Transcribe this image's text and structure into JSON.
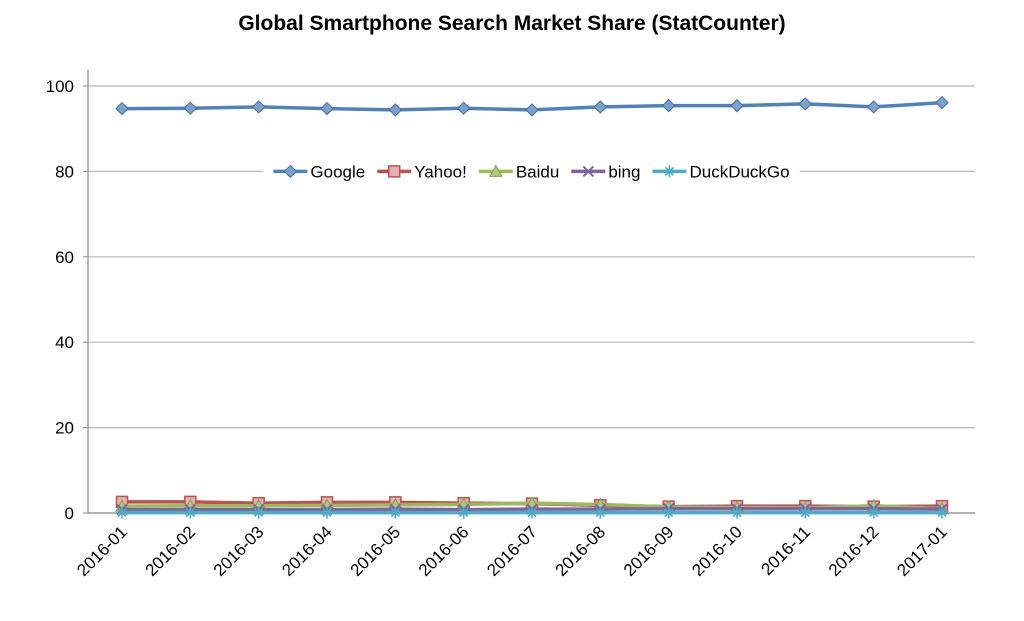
{
  "chart_data": {
    "type": "line",
    "title": "Global Smartphone Search Market Share (StatCounter)",
    "xlabel": "",
    "ylabel": "",
    "ylim": [
      0,
      100
    ],
    "yticks": [
      0,
      20,
      40,
      60,
      80,
      100
    ],
    "grid": true,
    "legend": "top-center",
    "categories": [
      "2016-01",
      "2016-02",
      "2016-03",
      "2016-04",
      "2016-05",
      "2016-06",
      "2016-07",
      "2016-08",
      "2016-09",
      "2016-10",
      "2016-11",
      "2016-12",
      "2017-01"
    ],
    "series": [
      {
        "name": "Google",
        "color": "#4f81bd",
        "marker": "diamond",
        "values": [
          94.7,
          94.8,
          95.1,
          94.7,
          94.4,
          94.8,
          94.4,
          95.1,
          95.4,
          95.4,
          95.8,
          95.1,
          96.1
        ]
      },
      {
        "name": "Yahoo!",
        "color": "#c0504d",
        "marker": "square",
        "values": [
          2.6,
          2.6,
          2.3,
          2.5,
          2.5,
          2.3,
          2.2,
          1.8,
          1.5,
          1.6,
          1.6,
          1.5,
          1.6
        ]
      },
      {
        "name": "Baidu",
        "color": "#9bbb59",
        "marker": "triangle",
        "values": [
          1.6,
          1.7,
          1.7,
          1.8,
          1.9,
          2.0,
          2.3,
          2.0,
          1.4,
          1.3,
          1.2,
          1.7,
          1.0
        ]
      },
      {
        "name": "bing",
        "color": "#8064a2",
        "marker": "x",
        "values": [
          0.8,
          0.8,
          0.8,
          0.8,
          0.9,
          0.8,
          0.9,
          0.9,
          1.0,
          1.0,
          1.0,
          1.0,
          0.9
        ]
      },
      {
        "name": "DuckDuckGo",
        "color": "#4bacc6",
        "marker": "star",
        "values": [
          0.1,
          0.1,
          0.1,
          0.1,
          0.1,
          0.1,
          0.1,
          0.1,
          0.1,
          0.1,
          0.1,
          0.1,
          0.1
        ]
      }
    ]
  }
}
